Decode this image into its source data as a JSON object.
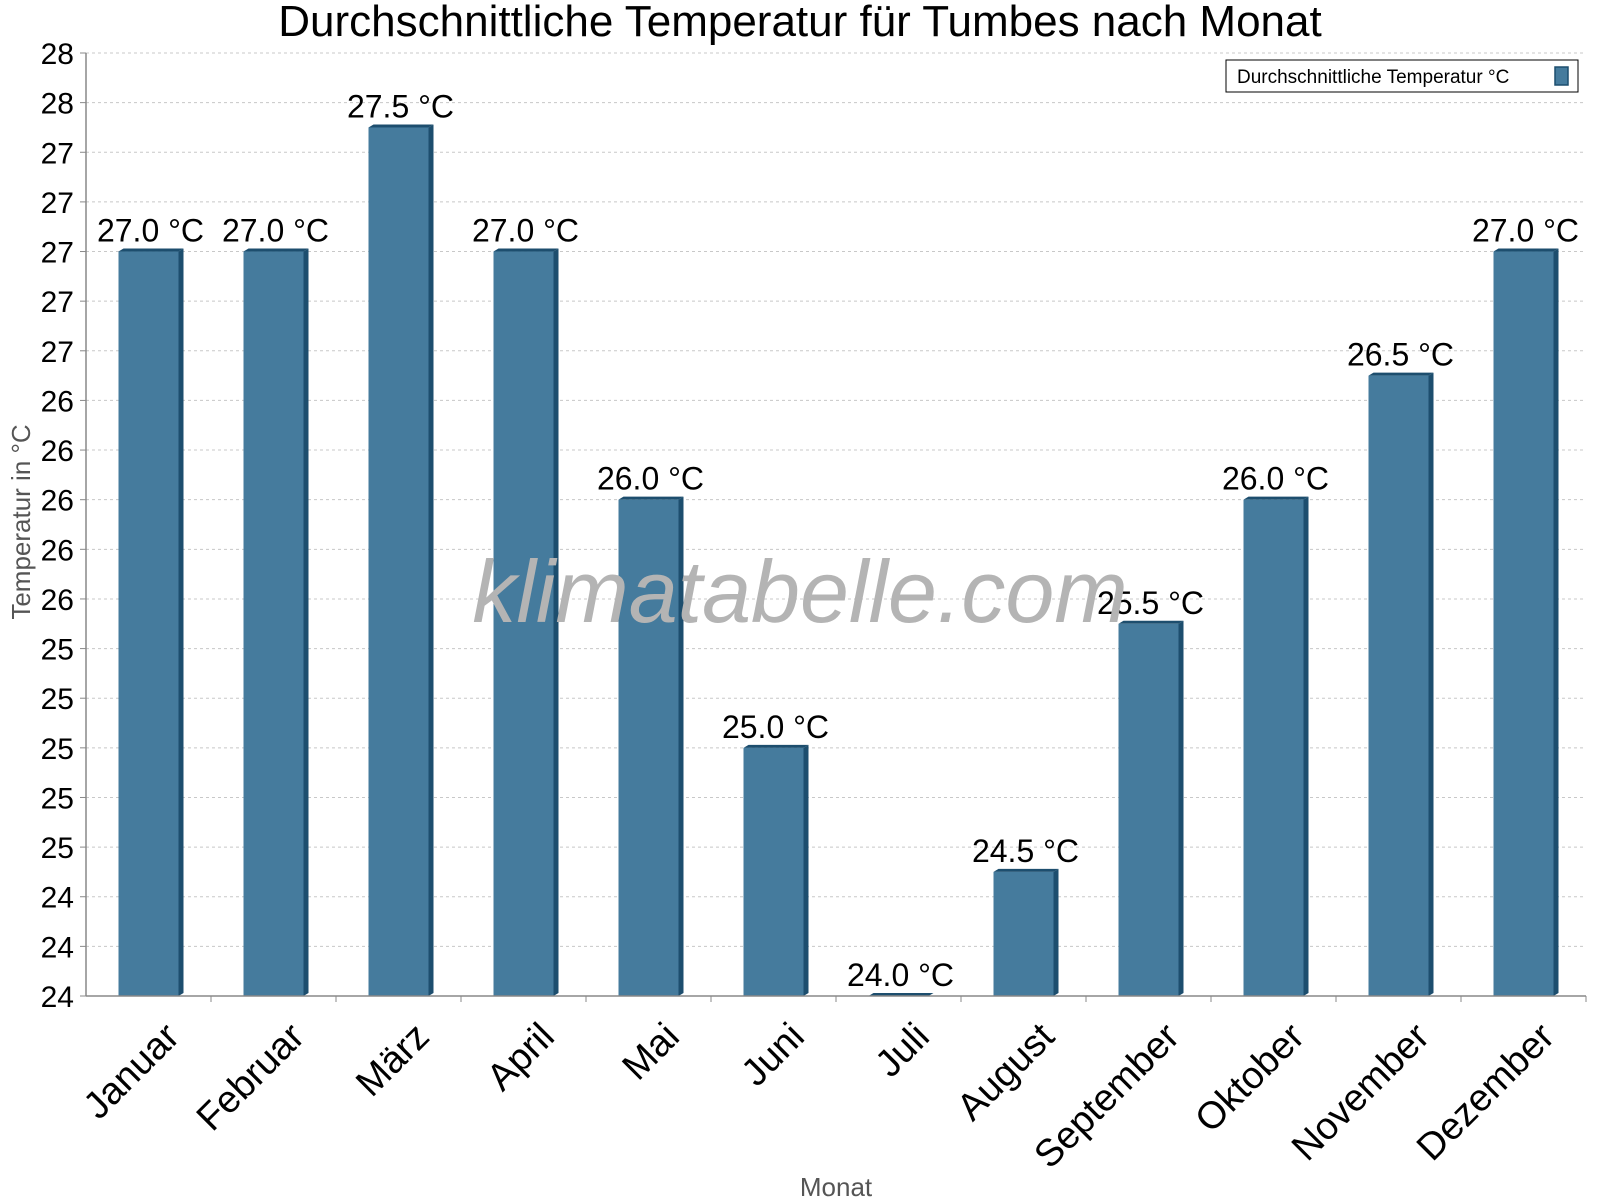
{
  "chart_data": {
    "type": "bar",
    "title": "Durchschnittliche Temperatur für Tumbes nach Monat",
    "xlabel": "Monat",
    "ylabel": "Temperatur in °C",
    "categories": [
      "Januar",
      "Februar",
      "März",
      "April",
      "Mai",
      "Juni",
      "Juli",
      "August",
      "September",
      "Oktober",
      "November",
      "Dezember"
    ],
    "series": [
      {
        "name": "Durchschnittliche Temperatur °C",
        "values": [
          27.0,
          27.0,
          27.5,
          27.0,
          26.0,
          25.0,
          24.0,
          24.5,
          25.5,
          26.0,
          26.5,
          27.0
        ],
        "labels": [
          "27.0 °C",
          "27.0 °C",
          "27.5 °C",
          "27.0 °C",
          "26.0 °C",
          "25.0 °C",
          "24.0 °C",
          "24.5 °C",
          "25.5 °C",
          "26.0 °C",
          "26.5 °C",
          "27.0 °C"
        ]
      }
    ],
    "ylim": [
      24.0,
      27.8
    ],
    "ytick_values": [
      24.0,
      24.2,
      24.4,
      24.6,
      24.8,
      25.0,
      25.2,
      25.4,
      25.6,
      25.8,
      26.0,
      26.2,
      26.4,
      26.6,
      26.8,
      27.0,
      27.2,
      27.4,
      27.6,
      27.8
    ],
    "ytick_labels": [
      "24",
      "24",
      "24",
      "25",
      "25",
      "25",
      "25",
      "25",
      "26",
      "26",
      "26",
      "26",
      "26",
      "27",
      "27",
      "27",
      "27",
      "27",
      "28",
      "28"
    ],
    "grid": true,
    "legend_position": "top-right",
    "colors": {
      "bar": "#457b9d",
      "bar_edge": "#1d4e6e"
    },
    "watermark": "klimatabelle.com"
  }
}
